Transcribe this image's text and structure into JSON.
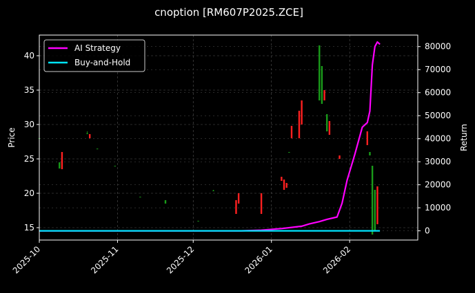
{
  "chart_data": {
    "type": "candlestick",
    "title": "cnoption [RM607P2025.ZCE]",
    "x_axis": {
      "type": "date",
      "range": [
        "2025-10-01",
        "2026-02-28"
      ],
      "ticks": [
        "2025-10",
        "2025-11",
        "2025-12",
        "2026-01",
        "2026-02"
      ]
    },
    "y_left": {
      "label": "Price",
      "range": [
        13.2,
        43.0
      ],
      "ticks": [
        15,
        20,
        25,
        30,
        35,
        40
      ]
    },
    "y_right": {
      "label": "Return",
      "range": [
        -4000,
        85000
      ],
      "ticks": [
        0,
        10000,
        20000,
        30000,
        40000,
        50000,
        60000,
        70000,
        80000
      ]
    },
    "grid": true,
    "legend": {
      "position": "top-left",
      "entries": [
        "AI Strategy",
        "Buy-and-Hold"
      ]
    },
    "colors": {
      "background": "#000000",
      "up": "#1a9c1a",
      "down": "#ff2020",
      "ai_strategy": "#ff00ff",
      "buy_and_hold": "#00e5ff",
      "grid": "#555555",
      "axis": "#ffffff"
    },
    "candles": [
      {
        "date": "2025-10-01",
        "open": 28.0,
        "close": 28.0,
        "high": 28.1,
        "low": 27.9
      },
      {
        "date": "2025-10-09",
        "open": 23.6,
        "close": 24.5,
        "high": 24.5,
        "low": 23.6
      },
      {
        "date": "2025-10-10",
        "open": 26.0,
        "close": 23.5,
        "high": 26.0,
        "low": 23.5
      },
      {
        "date": "2025-10-20",
        "open": 28.7,
        "close": 28.7,
        "high": 29.0,
        "low": 28.6
      },
      {
        "date": "2025-10-21",
        "open": 28.6,
        "close": 28.0,
        "high": 28.6,
        "low": 28.0
      },
      {
        "date": "2025-10-24",
        "open": 26.5,
        "close": 26.5,
        "high": 26.5,
        "low": 26.4
      },
      {
        "date": "2025-10-31",
        "open": 24.0,
        "close": 24.0,
        "high": 24.0,
        "low": 24.0
      },
      {
        "date": "2025-11-10",
        "open": 19.5,
        "close": 19.5,
        "high": 19.5,
        "low": 19.5
      },
      {
        "date": "2025-11-20",
        "open": 18.5,
        "close": 19.0,
        "high": 19.0,
        "low": 18.5
      },
      {
        "date": "2025-12-03",
        "open": 16.0,
        "close": 16.0,
        "high": 16.0,
        "low": 16.0
      },
      {
        "date": "2025-12-09",
        "open": 20.4,
        "close": 20.4,
        "high": 20.5,
        "low": 20.4
      },
      {
        "date": "2025-12-18",
        "open": 19.0,
        "close": 17.0,
        "high": 19.0,
        "low": 17.0
      },
      {
        "date": "2025-12-19",
        "open": 20.0,
        "close": 18.5,
        "high": 20.0,
        "low": 18.5
      },
      {
        "date": "2025-12-28",
        "open": 20.0,
        "close": 17.0,
        "high": 20.0,
        "low": 17.0
      },
      {
        "date": "2026-01-05",
        "open": 22.4,
        "close": 21.8,
        "high": 22.4,
        "low": 21.8
      },
      {
        "date": "2026-01-06",
        "open": 22.0,
        "close": 20.5,
        "high": 22.0,
        "low": 20.5
      },
      {
        "date": "2026-01-07",
        "open": 21.5,
        "close": 20.8,
        "high": 21.5,
        "low": 20.8
      },
      {
        "date": "2026-01-08",
        "open": 26.0,
        "close": 26.0,
        "high": 26.0,
        "low": 26.0
      },
      {
        "date": "2026-01-09",
        "open": 29.8,
        "close": 28.0,
        "high": 29.8,
        "low": 28.0
      },
      {
        "date": "2026-01-12",
        "open": 32.0,
        "close": 28.0,
        "high": 32.0,
        "low": 28.0
      },
      {
        "date": "2026-01-13",
        "open": 33.5,
        "close": 30.0,
        "high": 33.5,
        "low": 30.0
      },
      {
        "date": "2026-01-20",
        "open": 33.5,
        "close": 41.5,
        "high": 41.5,
        "low": 33.5
      },
      {
        "date": "2026-01-21",
        "open": 33.0,
        "close": 38.5,
        "high": 38.5,
        "low": 33.0
      },
      {
        "date": "2026-01-22",
        "open": 35.0,
        "close": 33.5,
        "high": 35.0,
        "low": 33.5
      },
      {
        "date": "2026-01-23",
        "open": 29.0,
        "close": 31.5,
        "high": 31.5,
        "low": 29.0
      },
      {
        "date": "2026-01-24",
        "open": 30.5,
        "close": 28.5,
        "high": 30.5,
        "low": 28.5
      },
      {
        "date": "2026-01-28",
        "open": 25.5,
        "close": 25.0,
        "high": 25.5,
        "low": 25.0
      },
      {
        "date": "2026-02-08",
        "open": 29.0,
        "close": 27.0,
        "high": 29.0,
        "low": 27.0
      },
      {
        "date": "2026-02-09",
        "open": 25.5,
        "close": 26.0,
        "high": 26.0,
        "low": 25.5
      },
      {
        "date": "2026-02-10",
        "open": 14.0,
        "close": 24.0,
        "high": 24.0,
        "low": 14.0
      },
      {
        "date": "2026-02-11",
        "open": 14.5,
        "close": 20.5,
        "high": 20.5,
        "low": 14.5
      },
      {
        "date": "2026-02-12",
        "open": 21.0,
        "close": 15.5,
        "high": 21.0,
        "low": 15.5
      }
    ],
    "series": [
      {
        "name": "AI Strategy",
        "axis": "right",
        "x": [
          "2025-10-01",
          "2025-12-20",
          "2025-12-28",
          "2026-01-05",
          "2026-01-09",
          "2026-01-13",
          "2026-01-16",
          "2026-01-20",
          "2026-01-23",
          "2026-01-27",
          "2026-01-29",
          "2026-01-31",
          "2026-02-03",
          "2026-02-06",
          "2026-02-08",
          "2026-02-09",
          "2026-02-10",
          "2026-02-11",
          "2026-02-12",
          "2026-02-13"
        ],
        "values": [
          0,
          0,
          300,
          1000,
          1500,
          2000,
          3000,
          4000,
          5000,
          6000,
          12000,
          22000,
          33000,
          45000,
          47000,
          52000,
          72000,
          80000,
          82000,
          81000
        ]
      },
      {
        "name": "Buy-and-Hold",
        "axis": "right",
        "x": [
          "2025-10-01",
          "2026-02-13"
        ],
        "values": [
          0,
          0
        ]
      }
    ]
  }
}
